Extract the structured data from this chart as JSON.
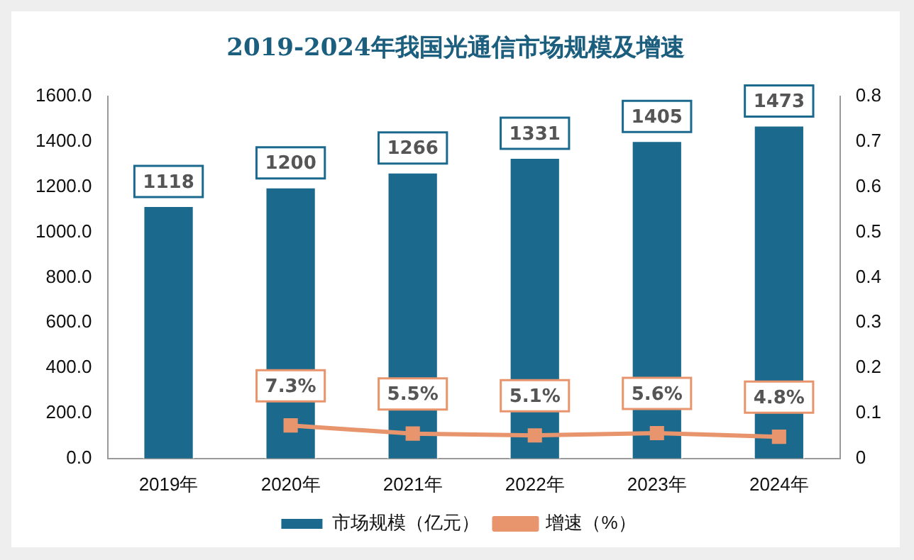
{
  "chart_data": {
    "type": "bar",
    "title": "2019-2024年我国光通信市场规模及增速",
    "categories": [
      "2019年",
      "2020年",
      "2021年",
      "2022年",
      "2023年",
      "2024年"
    ],
    "series": [
      {
        "name": "市场规模（亿元）",
        "color": "#1b6a8e",
        "values": [
          1118,
          1200,
          1266,
          1331,
          1405,
          1473
        ],
        "value_labels": [
          "1118",
          "1200",
          "1266",
          "1331",
          "1405",
          "1473"
        ]
      },
      {
        "name": "增速（%）",
        "type": "line",
        "axis": "y2",
        "color": "#e8956d",
        "marker": "square",
        "values": [
          null,
          0.073,
          0.055,
          0.051,
          0.056,
          0.048
        ],
        "value_labels": [
          null,
          "7.3%",
          "5.5%",
          "5.1%",
          "5.6%",
          "4.8%"
        ]
      }
    ],
    "ylim": [
      0,
      1600
    ],
    "yticks": [
      {
        "value": 0,
        "label": "0.0"
      },
      {
        "value": 200,
        "label": "200.0"
      },
      {
        "value": 400,
        "label": "400.0"
      },
      {
        "value": 600,
        "label": "600.0"
      },
      {
        "value": 800,
        "label": "800.0"
      },
      {
        "value": 1000,
        "label": "1000.0"
      },
      {
        "value": 1200,
        "label": "1200.0"
      },
      {
        "value": 1400,
        "label": "1400.0"
      },
      {
        "value": 1600,
        "label": "1600.0"
      }
    ],
    "y2lim": [
      0,
      0.8
    ],
    "y2ticks": [
      0,
      0.1,
      0.2,
      0.3,
      0.4,
      0.5,
      0.6,
      0.7,
      0.8
    ],
    "grid": false,
    "legend": "bottom"
  }
}
